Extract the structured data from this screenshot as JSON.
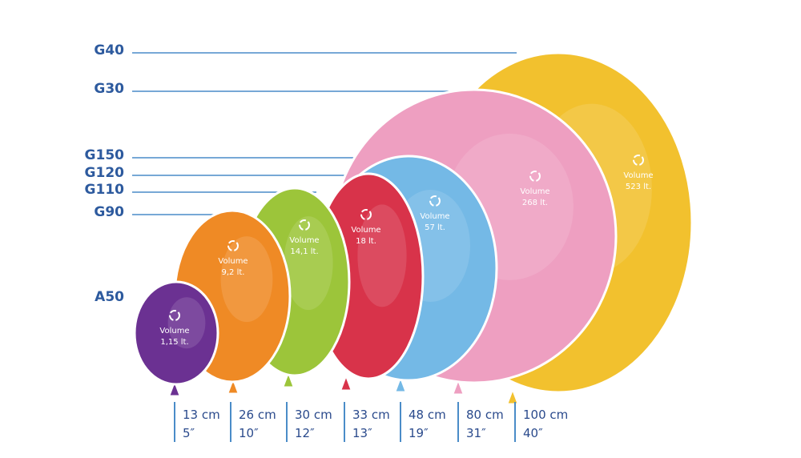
{
  "series_labels": [
    "G40",
    "G30",
    "G150",
    "G120",
    "G110",
    "G90",
    "A50"
  ],
  "balloons": [
    {
      "volume_label": "Volume",
      "volume": "523 lt.",
      "cm": "100 cm",
      "inch": "40″"
    },
    {
      "volume_label": "Volume",
      "volume": "268 lt.",
      "cm": "80 cm",
      "inch": "31″"
    },
    {
      "volume_label": "Volume",
      "volume": "57 lt.",
      "cm": "48 cm",
      "inch": "19″"
    },
    {
      "volume_label": "Volume",
      "volume": "18 lt.",
      "cm": "33 cm",
      "inch": "13″"
    },
    {
      "volume_label": "Volume",
      "volume": "14,1 lt.",
      "cm": "30 cm",
      "inch": "12″"
    },
    {
      "volume_label": "Volume",
      "volume": "9,2 lt.",
      "cm": "26 cm",
      "inch": "10″"
    },
    {
      "volume_label": "Volume",
      "volume": "1,15 lt.",
      "cm": "13 cm",
      "inch": "5″"
    }
  ]
}
